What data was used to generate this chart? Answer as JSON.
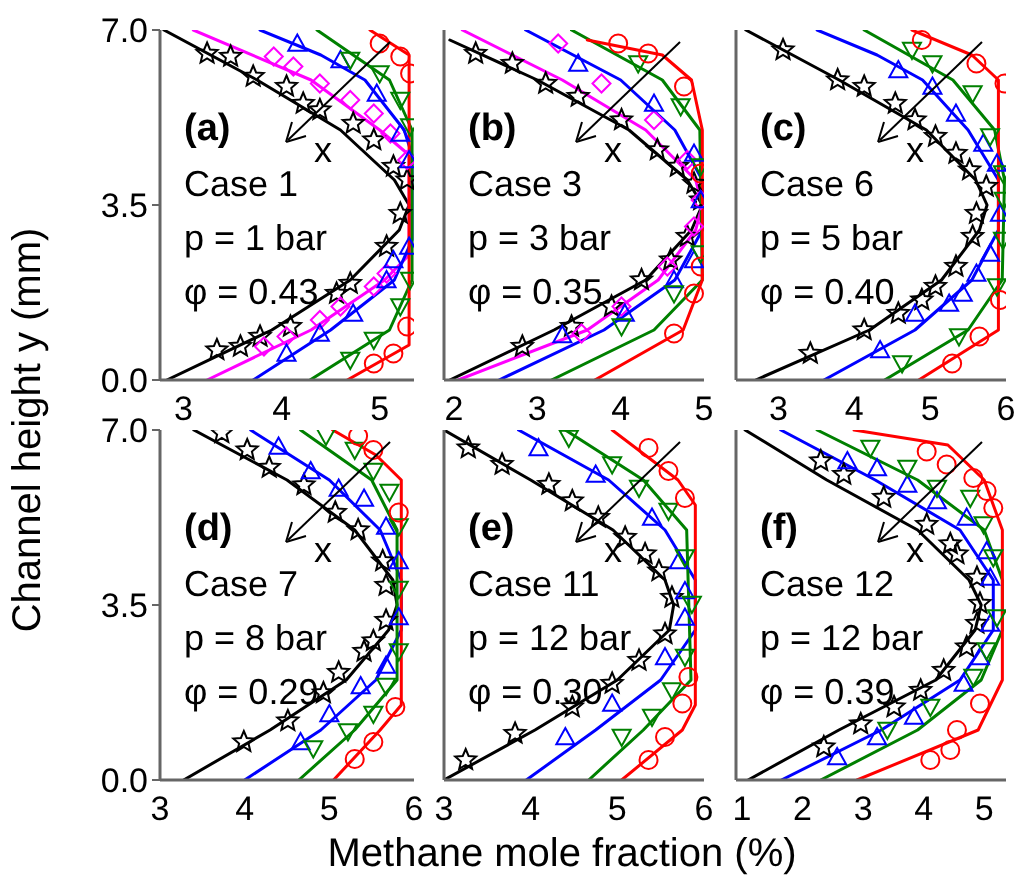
{
  "chart_data": [
    {
      "type": "scatter",
      "ylabel": "Channel height y (mm)",
      "xlim": [
        2.76,
        5.35
      ],
      "xticks": [
        3,
        4,
        5
      ],
      "ylim": [
        0,
        7
      ],
      "yticks": [
        {
          "value": 0,
          "label": "0.0"
        },
        {
          "value": 3.5,
          "label": "3.5"
        },
        {
          "value": 7,
          "label": "7.0"
        }
      ],
      "annotations": [
        "(a)",
        "Case 1",
        "p = 1 bar",
        "φ = 0.43",
        "x"
      ],
      "series": [
        {
          "type": "line",
          "color": "#000000",
          "x": [
            2.8,
            3.75,
            4.6,
            5.15,
            5.3,
            5.2,
            4.7,
            3.9,
            2.83
          ],
          "values": [
            7,
            6,
            5,
            4,
            3.5,
            3,
            2,
            1,
            0
          ]
        },
        {
          "type": "scatter",
          "color": "#000000",
          "marker": "star",
          "x": [
            3.24,
            3.48,
            3.71,
            4.05,
            4.22,
            4.39,
            4.73,
            4.94,
            5.14,
            5.28,
            5.21,
            5.07,
            4.7,
            4.56,
            4.09,
            3.78,
            3.58,
            3.34
          ],
          "values": [
            6.53,
            6.47,
            6.07,
            5.87,
            5.53,
            5.4,
            5.13,
            4.8,
            4.27,
            4.0,
            3.33,
            2.67,
            1.93,
            1.73,
            1.07,
            0.87,
            0.67,
            0.6
          ]
        },
        {
          "type": "line",
          "color": "#ff00ff",
          "x": [
            3.1,
            4.3,
            5.0,
            5.3,
            5.3,
            5.05,
            4.3,
            3.24
          ],
          "values": [
            7,
            6,
            5,
            4.5,
            2.5,
            2,
            1,
            0
          ]
        },
        {
          "type": "scatter",
          "color": "#ff00ff",
          "marker": "diamond",
          "x": [
            3.92,
            4.12,
            4.39,
            4.7,
            4.94,
            5.11,
            5.28,
            5.07,
            4.94,
            4.6,
            4.39,
            4.05,
            3.82
          ],
          "values": [
            6.47,
            6.27,
            5.93,
            5.6,
            5.33,
            4.93,
            4.4,
            2.13,
            1.87,
            1.47,
            1.2,
            0.87,
            0.67
          ]
        },
        {
          "type": "line",
          "color": "#0000ff",
          "x": [
            3.78,
            4.4,
            4.85,
            5.25,
            5.33,
            5.33,
            5.15,
            4.5,
            3.71
          ],
          "values": [
            7,
            6.5,
            6,
            5,
            4.5,
            2.8,
            2,
            1,
            0
          ]
        },
        {
          "type": "scatter",
          "color": "#0000ff",
          "marker": "triangle",
          "x": [
            4.16,
            4.6,
            4.97,
            5.21,
            5.3,
            5.3,
            5.14,
            5.07,
            4.73,
            4.39,
            4.05
          ],
          "values": [
            6.73,
            6.4,
            5.73,
            4.93,
            4.4,
            2.67,
            2.4,
            2.0,
            1.33,
            0.93,
            0.53
          ]
        },
        {
          "type": "line",
          "color": "#008000",
          "x": [
            4.36,
            5.1,
            5.33,
            5.33,
            5.1,
            4.29
          ],
          "values": [
            7,
            6,
            5,
            2,
            1,
            0
          ]
        },
        {
          "type": "scatter",
          "color": "#008000",
          "marker": "triangle-down",
          "x": [
            4.7,
            5.0,
            5.21,
            5.31,
            5.31,
            5.21,
            4.94,
            4.7
          ],
          "values": [
            6.4,
            6.13,
            5.6,
            5.07,
            2.0,
            1.47,
            0.8,
            0.4
          ]
        },
        {
          "type": "line",
          "color": "#ff0000",
          "x": [
            4.9,
            5.3,
            5.3,
            4.67
          ],
          "values": [
            7,
            6.5,
            0.7,
            0
          ]
        },
        {
          "type": "scatter",
          "color": "#ff0000",
          "marker": "circle",
          "x": [
            5.0,
            5.21,
            5.31,
            5.28,
            5.14,
            4.94
          ],
          "values": [
            6.73,
            6.47,
            6.13,
            1.07,
            0.53,
            0.33
          ]
        }
      ]
    },
    {
      "type": "scatter",
      "tick_labels": "x",
      "xlim": [
        1.88,
        5.0
      ],
      "xticks": [
        2,
        3,
        4,
        5
      ],
      "ylim": [
        0,
        7
      ],
      "yticks": [
        {
          "value": 0,
          "label": null
        },
        {
          "value": 3.5,
          "label": null
        },
        {
          "value": 7,
          "label": null
        }
      ],
      "annotations": [
        "(b)",
        "Case 3",
        "p = 3 bar",
        "φ = 0.35",
        "x"
      ],
      "series": [
        {
          "type": "line",
          "color": "#000000",
          "x": [
            1.95,
            3.0,
            4.1,
            4.8,
            4.98,
            4.85,
            4.3,
            3.2,
            1.95
          ],
          "values": [
            6.8,
            6,
            5,
            4,
            3.5,
            3,
            2,
            1,
            0
          ]
        },
        {
          "type": "scatter",
          "color": "#000000",
          "marker": "star",
          "x": [
            2.26,
            2.7,
            3.1,
            3.49,
            4.01,
            4.44,
            4.68,
            4.88,
            4.96,
            4.8,
            4.6,
            4.25,
            3.89,
            3.41,
            2.82
          ],
          "values": [
            6.53,
            6.33,
            5.93,
            5.67,
            5.2,
            4.6,
            4.27,
            3.93,
            3.6,
            2.87,
            2.4,
            2.0,
            1.47,
            1.07,
            0.67
          ]
        },
        {
          "type": "line",
          "color": "#ff00ff",
          "x": [
            2.1,
            3.3,
            4.3,
            4.9,
            4.98,
            4.9,
            4.45,
            3.6,
            2.05
          ],
          "values": [
            7,
            6,
            5,
            4,
            3.5,
            3,
            2,
            1,
            0
          ]
        },
        {
          "type": "scatter",
          "color": "#ff00ff",
          "marker": "diamond",
          "x": [
            3.25,
            3.77,
            4.4,
            4.8,
            4.96,
            4.88,
            4.56,
            4.01,
            3.53
          ],
          "values": [
            6.73,
            5.93,
            5.2,
            4.4,
            3.6,
            3.07,
            2.27,
            1.47,
            0.93
          ]
        },
        {
          "type": "line",
          "color": "#0000ff",
          "x": [
            2.86,
            4.0,
            4.65,
            4.98,
            4.98,
            4.65,
            3.8,
            2.54
          ],
          "values": [
            7,
            6,
            5,
            4,
            3,
            2,
            1,
            0
          ]
        },
        {
          "type": "scatter",
          "color": "#0000ff",
          "marker": "triangle",
          "x": [
            3.49,
            4.4,
            4.88,
            4.96,
            4.88,
            4.64,
            4.05,
            3.3
          ],
          "values": [
            6.33,
            5.53,
            4.53,
            3.6,
            2.4,
            2.0,
            1.33,
            0.9
          ]
        },
        {
          "type": "line",
          "color": "#008000",
          "x": [
            3.41,
            4.5,
            4.95,
            4.98,
            4.4,
            3.17
          ],
          "values": [
            7,
            6,
            5,
            2,
            1,
            0
          ]
        },
        {
          "type": "scatter",
          "color": "#008000",
          "marker": "triangle-down",
          "x": [
            4.21,
            4.72,
            4.96,
            4.96,
            4.64,
            4.01
          ],
          "values": [
            6.33,
            5.47,
            4.27,
            2.53,
            1.73,
            1.07
          ]
        },
        {
          "type": "line",
          "color": "#ff0000",
          "x": [
            3.6,
            4.5,
            4.85,
            4.98,
            4.98,
            4.75,
            3.69
          ],
          "values": [
            6.8,
            6.5,
            6,
            5,
            2,
            1,
            0
          ]
        },
        {
          "type": "scatter",
          "color": "#ff0000",
          "marker": "circle",
          "x": [
            3.97,
            4.33,
            4.76,
            4.96,
            4.96,
            4.88,
            4.64
          ],
          "values": [
            6.73,
            6.53,
            5.87,
            4.13,
            2.27,
            1.73,
            0.93
          ]
        }
      ]
    },
    {
      "type": "scatter",
      "tick_labels": "x",
      "xlim": [
        2.44,
        6.0
      ],
      "xticks": [
        3,
        4,
        5,
        6
      ],
      "ylim": [
        0,
        7
      ],
      "yticks": [
        {
          "value": 0,
          "label": null
        },
        {
          "value": 3.5,
          "label": null
        },
        {
          "value": 7,
          "label": null
        }
      ],
      "annotations": [
        "(c)",
        "Case 6",
        "p = 5 bar",
        "φ = 0.40",
        "x"
      ],
      "series": [
        {
          "type": "line",
          "color": "#000000",
          "x": [
            2.57,
            3.8,
            4.95,
            5.6,
            5.75,
            5.65,
            5.15,
            4.2,
            2.7
          ],
          "values": [
            7,
            6,
            5,
            4,
            3.5,
            3,
            2,
            1,
            0
          ]
        },
        {
          "type": "scatter",
          "color": "#000000",
          "marker": "star",
          "x": [
            3.06,
            3.78,
            4.13,
            4.54,
            4.8,
            5.07,
            5.34,
            5.52,
            5.74,
            5.61,
            5.56,
            5.34,
            5.07,
            4.89,
            4.58,
            4.13,
            3.42
          ],
          "values": [
            6.6,
            6.0,
            5.87,
            5.53,
            5.2,
            4.87,
            4.53,
            4.2,
            3.87,
            3.33,
            2.87,
            2.27,
            1.87,
            1.6,
            1.33,
            1.0,
            0.53
          ]
        },
        {
          "type": "line",
          "color": "#0000ff",
          "x": [
            3.51,
            4.3,
            4.9,
            5.5,
            5.9,
            5.9,
            5.55,
            4.8,
            3.6
          ],
          "values": [
            7,
            6.5,
            6,
            5,
            4,
            3,
            2,
            1,
            0
          ]
        },
        {
          "type": "scatter",
          "color": "#0000ff",
          "marker": "triangle",
          "x": [
            4.58,
            5.03,
            5.34,
            5.7,
            5.88,
            5.92,
            5.79,
            5.61,
            5.43,
            5.25,
            4.8,
            4.34
          ],
          "values": [
            6.2,
            5.87,
            5.33,
            4.73,
            4.33,
            3.33,
            2.53,
            2.13,
            1.73,
            1.53,
            1.33,
            0.6
          ]
        },
        {
          "type": "line",
          "color": "#008000",
          "x": [
            4.13,
            5.3,
            5.85,
            5.98,
            5.95,
            5.5,
            4.4
          ],
          "values": [
            7,
            6,
            5,
            4,
            2,
            1,
            0
          ]
        },
        {
          "type": "scatter",
          "color": "#008000",
          "marker": "triangle-down",
          "x": [
            4.76,
            5.03,
            5.56,
            5.79,
            5.96,
            5.97,
            5.96,
            5.88,
            5.38,
            4.63
          ],
          "values": [
            6.6,
            6.33,
            5.73,
            4.87,
            4.13,
            3.6,
            2.8,
            1.87,
            0.87,
            0.33
          ]
        },
        {
          "type": "line",
          "color": "#ff0000",
          "x": [
            4.76,
            5.55,
            5.9,
            5.9,
            4.85
          ],
          "values": [
            7,
            6.5,
            6,
            1,
            0
          ]
        },
        {
          "type": "scatter",
          "color": "#ff0000",
          "marker": "circle",
          "x": [
            4.89,
            5.61,
            5.98,
            5.92,
            5.65,
            5.29
          ],
          "values": [
            6.8,
            6.33,
            5.93,
            1.6,
            0.87,
            0.33
          ]
        }
      ]
    },
    {
      "type": "scatter",
      "xlim": [
        3,
        6
      ],
      "xticks": [
        3,
        4,
        5,
        6
      ],
      "ylim": [
        0,
        7
      ],
      "yticks": [
        {
          "value": 0,
          "label": "0.0"
        },
        {
          "value": 3.5,
          "label": "3.5"
        },
        {
          "value": 7,
          "label": "7.0"
        }
      ],
      "annotations": [
        "(d)",
        "Case 7",
        "p = 8 bar",
        "φ = 0.29",
        "x"
      ],
      "series": [
        {
          "type": "line",
          "color": "#000000",
          "x": [
            3.4,
            4.5,
            5.3,
            5.75,
            5.8,
            5.7,
            5.2,
            4.3,
            3.28
          ],
          "values": [
            7,
            6,
            5,
            4,
            3.5,
            3,
            2,
            1,
            0
          ]
        },
        {
          "type": "scatter",
          "color": "#000000",
          "marker": "star",
          "x": [
            3.73,
            4.03,
            4.29,
            4.7,
            5.07,
            5.34,
            5.63,
            5.67,
            5.67,
            5.52,
            5.41,
            5.11,
            4.93,
            4.51,
            3.99
          ],
          "values": [
            6.94,
            6.6,
            6.25,
            5.9,
            5.35,
            5.0,
            4.38,
            3.89,
            3.19,
            2.78,
            2.57,
            2.15,
            1.74,
            1.18,
            0.76
          ]
        },
        {
          "type": "line",
          "color": "#0000ff",
          "x": [
            4.07,
            5.0,
            5.6,
            5.85,
            5.85,
            5.55,
            4.9,
            4.0
          ],
          "values": [
            7,
            6,
            5,
            4,
            3,
            2,
            1,
            0
          ]
        },
        {
          "type": "scatter",
          "color": "#0000ff",
          "marker": "triangle",
          "x": [
            4.4,
            4.78,
            5.11,
            5.41,
            5.67,
            5.82,
            5.82,
            5.67,
            5.37,
            5.0,
            4.66
          ],
          "values": [
            6.67,
            6.18,
            5.83,
            5.63,
            5.07,
            4.38,
            3.26,
            2.29,
            1.88,
            1.32,
            0.76
          ]
        },
        {
          "type": "line",
          "color": "#008000",
          "x": [
            4.66,
            5.5,
            5.8,
            5.8,
            5.3,
            4.64
          ],
          "values": [
            7,
            6,
            5,
            2,
            1,
            0
          ]
        },
        {
          "type": "scatter",
          "color": "#008000",
          "marker": "triangle-down",
          "x": [
            4.96,
            5.3,
            5.52,
            5.71,
            5.82,
            5.82,
            5.82,
            5.67,
            5.52,
            5.22,
            4.81
          ],
          "values": [
            6.88,
            6.6,
            6.18,
            5.76,
            5.07,
            3.82,
            2.57,
            1.88,
            1.32,
            0.97,
            0.63
          ]
        },
        {
          "type": "line",
          "color": "#ff0000",
          "x": [
            5.04,
            5.55,
            5.85,
            5.85,
            5.6,
            5.05
          ],
          "values": [
            7,
            6.5,
            6,
            1.5,
            1,
            0
          ]
        },
        {
          "type": "scatter",
          "color": "#ff0000",
          "marker": "circle",
          "x": [
            5.34,
            5.52,
            5.82,
            5.78,
            5.52,
            5.3
          ],
          "values": [
            6.88,
            6.6,
            5.35,
            1.46,
            0.76,
            0.42
          ]
        }
      ]
    },
    {
      "type": "scatter",
      "tick_labels": "x",
      "xlabel": "Methane mole fraction (%)",
      "xlim": [
        3,
        6
      ],
      "xticks": [
        3,
        4,
        5,
        6
      ],
      "ylim": [
        0,
        7
      ],
      "yticks": [
        {
          "value": 0,
          "label": null
        },
        {
          "value": 3.5,
          "label": null
        },
        {
          "value": 7,
          "label": null
        }
      ],
      "annotations": [
        "(e)",
        "Case 11",
        "p = 12 bar",
        "φ = 0.30",
        "x"
      ],
      "series": [
        {
          "type": "line",
          "color": "#000000",
          "x": [
            3.0,
            4.0,
            4.95,
            5.55,
            5.65,
            5.6,
            5.0,
            4.05,
            3.0
          ],
          "values": [
            7,
            6,
            5,
            4,
            3.5,
            3,
            2,
            1,
            0
          ]
        },
        {
          "type": "scatter",
          "color": "#000000",
          "marker": "star",
          "x": [
            3.28,
            3.67,
            4.21,
            4.48,
            4.78,
            5.09,
            5.32,
            5.48,
            5.63,
            5.55,
            5.25,
            4.94,
            4.48,
            3.82,
            3.25
          ],
          "values": [
            6.64,
            6.31,
            5.91,
            5.58,
            5.25,
            4.85,
            4.52,
            4.18,
            3.65,
            2.92,
            2.39,
            1.93,
            1.46,
            0.93,
            0.4
          ]
        },
        {
          "type": "line",
          "color": "#0000ff",
          "x": [
            3.86,
            4.9,
            5.55,
            5.9,
            5.9,
            5.5,
            4.75,
            3.95
          ],
          "values": [
            7,
            6,
            5,
            4,
            3,
            2,
            1,
            0
          ]
        },
        {
          "type": "scatter",
          "color": "#0000ff",
          "marker": "triangle",
          "x": [
            4.09,
            4.75,
            5.4,
            5.71,
            5.78,
            5.78,
            5.55,
            4.94,
            4.4
          ],
          "values": [
            6.64,
            6.11,
            5.25,
            4.38,
            3.78,
            3.25,
            2.46,
            1.53,
            0.86
          ]
        },
        {
          "type": "line",
          "color": "#008000",
          "x": [
            4.4,
            5.3,
            5.8,
            5.85,
            5.3,
            4.67
          ],
          "values": [
            7,
            6,
            5,
            2,
            1,
            0
          ]
        },
        {
          "type": "scatter",
          "color": "#008000",
          "marker": "triangle-down",
          "x": [
            4.44,
            4.94,
            5.25,
            5.59,
            5.78,
            5.86,
            5.78,
            5.63,
            5.4,
            5.05
          ],
          "values": [
            6.84,
            6.31,
            5.84,
            5.38,
            4.45,
            3.52,
            2.46,
            1.79,
            1.26,
            0.86
          ]
        },
        {
          "type": "line",
          "color": "#ff0000",
          "x": [
            4.94,
            5.7,
            5.9,
            5.9,
            5.75,
            5.05
          ],
          "values": [
            7,
            6,
            5.5,
            1.5,
            1,
            0
          ]
        },
        {
          "type": "scatter",
          "color": "#ff0000",
          "marker": "circle",
          "x": [
            5.36,
            5.59,
            5.78,
            5.82,
            5.75,
            5.55,
            5.36
          ],
          "values": [
            6.64,
            6.18,
            5.64,
            2.06,
            1.53,
            0.86,
            0.4
          ]
        }
      ]
    },
    {
      "type": "scatter",
      "tick_labels": "x",
      "xlim": [
        0.9,
        5.36
      ],
      "xticks": [
        1,
        2,
        3,
        4,
        5
      ],
      "ylim": [
        0,
        7
      ],
      "yticks": [
        {
          "value": 0,
          "label": null
        },
        {
          "value": 3.5,
          "label": null
        },
        {
          "value": 7,
          "label": null
        }
      ],
      "annotations": [
        "(f)",
        "Case 12",
        "p = 12 bar",
        "φ = 0.39",
        "x"
      ],
      "series": [
        {
          "type": "line",
          "color": "#000000",
          "x": [
            1.05,
            2.4,
            3.9,
            4.75,
            4.95,
            4.85,
            4.2,
            2.6,
            1.1
          ],
          "values": [
            7,
            6,
            5,
            4,
            3.5,
            3,
            2,
            1,
            0
          ]
        },
        {
          "type": "scatter",
          "color": "#000000",
          "marker": "star",
          "x": [
            2.3,
            2.68,
            3.34,
            4.05,
            4.44,
            4.55,
            4.88,
            4.93,
            4.88,
            4.71,
            4.33,
            3.95,
            3.51,
            2.96,
            2.35
          ],
          "values": [
            6.38,
            6.11,
            5.65,
            5.11,
            4.72,
            4.52,
            4.05,
            3.53,
            3.13,
            2.66,
            2.19,
            1.79,
            1.46,
            1.12,
            0.66
          ]
        },
        {
          "type": "line",
          "color": "#0000ff",
          "x": [
            1.64,
            3.2,
            4.6,
            5.15,
            5.15,
            4.6,
            3.3,
            1.65
          ],
          "values": [
            7,
            6,
            5,
            4,
            3,
            2,
            1,
            0
          ]
        },
        {
          "type": "scatter",
          "color": "#0000ff",
          "marker": "triangle",
          "x": [
            2.74,
            3.23,
            3.73,
            4.22,
            4.71,
            5.04,
            5.1,
            5.1,
            4.93,
            4.66,
            3.84,
            3.23,
            2.57
          ],
          "values": [
            6.38,
            6.24,
            5.91,
            5.58,
            5.25,
            4.58,
            4.05,
            3.13,
            2.46,
            1.93,
            1.27,
            0.86,
            0.46
          ]
        },
        {
          "type": "line",
          "color": "#008000",
          "x": [
            2.24,
            3.9,
            5.0,
            5.3,
            5.3,
            4.95,
            3.9,
            2.3
          ],
          "values": [
            7,
            6,
            5,
            4,
            3,
            2,
            1,
            0
          ]
        },
        {
          "type": "scatter",
          "color": "#008000",
          "marker": "triangle-down",
          "x": [
            3.12,
            3.73,
            4.22,
            4.77,
            4.99,
            5.15,
            5.21,
            5.04,
            4.82,
            4.11,
            3.4
          ],
          "values": [
            6.64,
            6.24,
            5.84,
            5.64,
            5.11,
            4.45,
            3.25,
            2.59,
            2.06,
            1.46,
            1.0
          ]
        },
        {
          "type": "line",
          "color": "#ff0000",
          "x": [
            2.85,
            4.4,
            5.0,
            5.3,
            5.3,
            4.9,
            2.9
          ],
          "values": [
            7,
            6.7,
            6,
            5,
            2,
            1,
            0
          ]
        },
        {
          "type": "scatter",
          "color": "#ff0000",
          "marker": "circle",
          "x": [
            4.05,
            4.38,
            4.82,
            5.04,
            5.15,
            4.93,
            4.55,
            4.44,
            4.11
          ],
          "values": [
            6.57,
            6.31,
            6.04,
            5.78,
            5.44,
            1.53,
            1.0,
            0.6,
            0.4
          ]
        }
      ]
    }
  ]
}
